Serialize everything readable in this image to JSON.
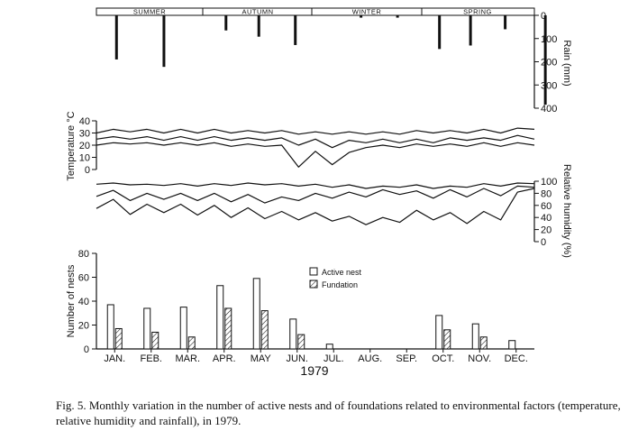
{
  "caption": "Fig. 5. Monthly variation in the number of active nests and of foundations related to environmental factors (temperature, relative humidity and rainfall), in 1979.",
  "chart_data": [
    {
      "panel": "rain",
      "type": "bar",
      "seasons": [
        "SUMMER",
        "AUTUMN",
        "WINTER",
        "SPRING"
      ],
      "ylabel": "Rain (mm)",
      "yticks": [
        "0",
        "100",
        "200",
        "300",
        "400"
      ],
      "ylim": [
        0,
        400
      ],
      "inverted": true,
      "x": [
        0.55,
        1.85,
        3.55,
        4.45,
        5.45,
        7.25,
        8.25,
        9.4,
        10.25,
        11.2,
        12.3
      ],
      "values": [
        190,
        222,
        65,
        92,
        128,
        10,
        10,
        145,
        130,
        60,
        385
      ]
    },
    {
      "panel": "temperature",
      "type": "line",
      "ylabel": "Temperature °C",
      "yticks": [
        "0",
        "10",
        "20",
        "30",
        "40"
      ],
      "ylim": [
        0,
        40
      ],
      "x": [
        0.0,
        0.5,
        1.0,
        1.5,
        2.0,
        2.5,
        3.0,
        3.5,
        4.0,
        4.5,
        5.0,
        5.5,
        6.0,
        6.5,
        7.0,
        7.5,
        8.0,
        8.5,
        9.0,
        9.5,
        10.0,
        10.5,
        11.0,
        11.5,
        12.0,
        12.5,
        13.0
      ],
      "series": [
        {
          "values": [
            30,
            33,
            31,
            33,
            30,
            33,
            30,
            33,
            30,
            32,
            30,
            32,
            29,
            31,
            29,
            31,
            29,
            31,
            29,
            32,
            30,
            32,
            30,
            33,
            30,
            34,
            33
          ]
        },
        {
          "values": [
            25,
            27,
            25,
            27,
            24,
            27,
            24,
            27,
            24,
            26,
            24,
            26,
            20,
            25,
            18,
            24,
            22,
            25,
            22,
            25,
            22,
            26,
            24,
            26,
            24,
            28,
            25
          ]
        },
        {
          "values": [
            20,
            22,
            21,
            22,
            20,
            22,
            20,
            22,
            19,
            21,
            19,
            20,
            2,
            15,
            4,
            14,
            18,
            20,
            18,
            21,
            19,
            21,
            19,
            22,
            19,
            22,
            20
          ]
        }
      ]
    },
    {
      "panel": "humidity",
      "type": "line",
      "ylabel": "Relative humidity (%)",
      "yticks": [
        "0",
        "20",
        "40",
        "60",
        "80",
        "100"
      ],
      "ylim": [
        0,
        100
      ],
      "x": [
        0.0,
        0.5,
        1.0,
        1.5,
        2.0,
        2.5,
        3.0,
        3.5,
        4.0,
        4.5,
        5.0,
        5.5,
        6.0,
        6.5,
        7.0,
        7.5,
        8.0,
        8.5,
        9.0,
        9.5,
        10.0,
        10.5,
        11.0,
        11.5,
        12.0,
        12.5,
        13.0
      ],
      "series": [
        {
          "values": [
            95,
            97,
            94,
            95,
            93,
            96,
            92,
            96,
            93,
            97,
            94,
            96,
            92,
            95,
            90,
            94,
            88,
            92,
            90,
            94,
            88,
            92,
            90,
            96,
            92,
            97,
            96
          ]
        },
        {
          "values": [
            75,
            85,
            68,
            80,
            70,
            80,
            68,
            80,
            66,
            78,
            64,
            74,
            68,
            80,
            72,
            82,
            74,
            86,
            78,
            84,
            72,
            86,
            74,
            88,
            76,
            92,
            90
          ]
        },
        {
          "values": [
            55,
            70,
            45,
            62,
            48,
            62,
            44,
            60,
            40,
            56,
            38,
            50,
            36,
            48,
            34,
            42,
            28,
            40,
            32,
            52,
            36,
            48,
            30,
            50,
            36,
            82,
            88
          ]
        }
      ]
    },
    {
      "panel": "nests",
      "type": "bar",
      "categories": [
        "JAN.",
        "FEB.",
        "MAR.",
        "APR.",
        "MAY",
        "JUN.",
        "JUL.",
        "AUG.",
        "SEP.",
        "OCT.",
        "NOV.",
        "DEC."
      ],
      "xlabel": "1979",
      "ylabel": "Number of nests",
      "yticks": [
        "0",
        "20",
        "40",
        "60",
        "80"
      ],
      "ylim": [
        0,
        80
      ],
      "series": [
        {
          "name": "Active nest",
          "values": [
            37,
            34,
            35,
            53,
            59,
            25,
            4,
            0,
            0,
            28,
            21,
            7
          ]
        },
        {
          "name": "Fundation",
          "values": [
            17,
            14,
            10,
            34,
            32,
            12,
            0,
            0,
            0,
            16,
            10,
            0
          ]
        }
      ],
      "legend": "top-center"
    }
  ]
}
